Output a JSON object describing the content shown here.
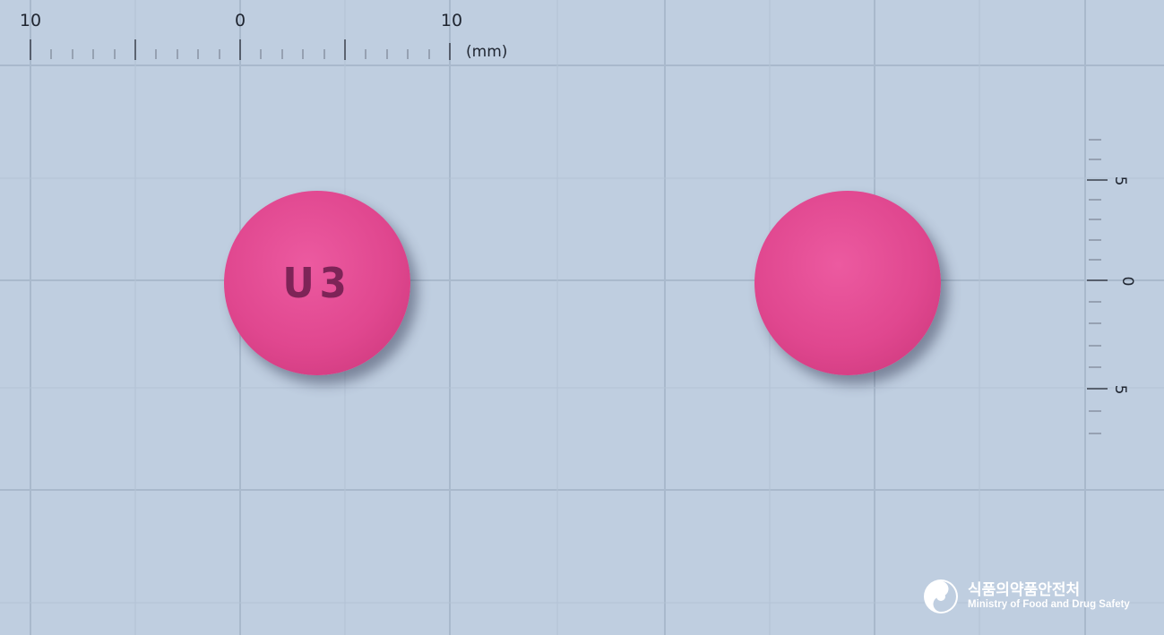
{
  "rulers": {
    "top": {
      "labels": [
        "10",
        "0",
        "10"
      ],
      "unit": "(mm)"
    },
    "right": {
      "labels": [
        "5",
        "0",
        "5"
      ]
    }
  },
  "colors": {
    "background": "#bfcee0",
    "grid_line": "#a9b9cc",
    "pill_body": "#e0478f",
    "imprint": "#6b1c4c"
  },
  "tablets": [
    {
      "view": "front",
      "imprint": "U3"
    },
    {
      "view": "back",
      "imprint": ""
    }
  ],
  "logo": {
    "icon": "taegeuk-emblem-icon",
    "name_ko": "식품의약품안전처",
    "name_en": "Ministry of Food and Drug Safety"
  }
}
